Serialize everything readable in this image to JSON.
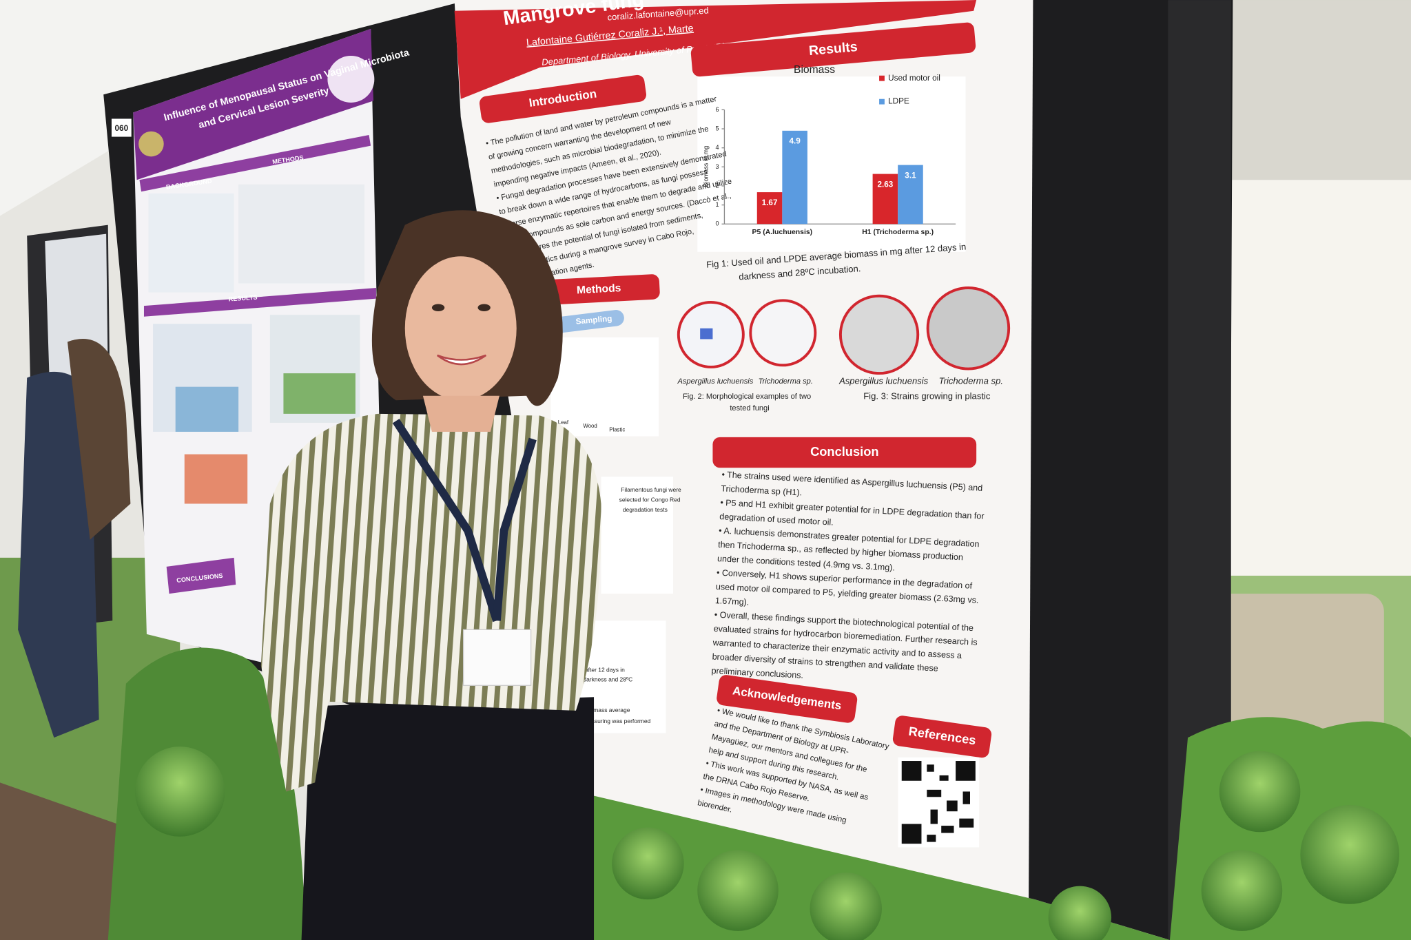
{
  "left_poster": {
    "number": "060",
    "title_lines": [
      "Influence of Menopausal Status on Vaginal Microbiota",
      "and Cervical Lesion Severity"
    ],
    "sections": [
      "BACKGROUND",
      "METHODS",
      "RESULTS",
      "CONCLUSIONS"
    ]
  },
  "poster": {
    "title": "Mangrove fung",
    "authors": "Lafontaine Gutiérrez Coraliz J.¹, Marte",
    "email": "coraliz.lafontaine@upr.ed",
    "affiliation": "Department of Biology, University of Puerto Rico , Mayagüez Camp",
    "introduction": {
      "heading": "Introduction",
      "lines": [
        "• The pollution of land and water by petroleum compounds is a matter",
        "of growing concern warranting the development of new",
        "methodologies, such as microbial biodegradation, to minimize the",
        "impending negative impacts (Ameen, et al., 2020).",
        "• Fungal degradation processes have been extensively demonstrated",
        "to break down a wide range of hydrocarbons, as fungi possess",
        "diverse enzymatic repertoires that enable them to degrade and utilize",
        "these compounds as sole carbon and energy sources. (Daccò et al.,",
        "udy explores the potential of fungi isolated from sediments,",
        "s, and plastics during a mangrove survey in Cabo Rojo,",
        "s bioremediation agents."
      ]
    },
    "methods": {
      "heading": "Methods",
      "labels": [
        "Sampling",
        "Leaf",
        "Wood",
        "Plastic"
      ],
      "notes": [
        "Filamentous fungi were",
        "selected for Congo Red",
        "degradation tests",
        "after 12 days in",
        "darkness and 28ºC",
        "Biomass average",
        "measuring was performed"
      ]
    },
    "results": {
      "heading": "Results",
      "chart": {
        "type": "bar",
        "title": "Biomass",
        "y_label": "Biomass in mg",
        "categories": [
          "P5 (A.luchuensis)",
          "H1 (Trichoderma sp.)"
        ],
        "series": [
          {
            "name": "Used motor oil",
            "color": "#d8262b",
            "values": [
              1.67,
              2.63
            ]
          },
          {
            "name": "LDPE",
            "color": "#5b9be0",
            "values": [
              4.9,
              3.1
            ]
          }
        ],
        "ylim": [
          0,
          6
        ],
        "yticks": [
          0,
          1,
          2,
          3,
          4,
          5,
          6
        ]
      },
      "fig1_caption": [
        "Fig 1: Used oil and LPDE average biomass in mg after 12 days in",
        "darkness and 28ºC incubation."
      ],
      "fig2_labels": [
        "Aspergillus luchuensis",
        "Trichoderma sp."
      ],
      "fig2_caption": [
        "Fig. 2: Morphological examples of two",
        "tested fungi"
      ],
      "fig3_labels": [
        "Aspergillus luchuensis",
        "Trichoderma sp."
      ],
      "fig3_caption": "Fig. 3: Strains growing in plastic"
    },
    "conclusion": {
      "heading": "Conclusion",
      "lines": [
        "• The strains used were identified as Aspergillus luchuensis (P5) and",
        "Trichoderma sp (H1).",
        "• P5 and H1 exhibit greater potential for in LDPE degradation than for",
        "degradation of used motor oil.",
        "• A. luchuensis demonstrates greater potential for LDPE degradation",
        "then Trichoderma sp., as reflected by higher biomass production",
        "under the conditions tested (4.9mg vs. 3.1mg).",
        "• Conversely, H1 shows superior performance in the degradation of",
        "used motor oil compared to P5, yielding greater biomass (2.63mg vs.",
        "1.67mg).",
        "• Overall, these findings support the biotechnological potential of the",
        "evaluated strains for hydrocarbon bioremediation. Further research is",
        "warranted to characterize their enzymatic activity and to assess a",
        "broader diversity of strains to strengthen and validate these",
        "preliminary conclusions."
      ]
    },
    "acknowledgements": {
      "heading": "Acknowledgements",
      "lines": [
        "• We would like to thank the Symbiosis Laboratory",
        "and the Department of Biology at UPR-",
        "Mayagüez, our mentors and collegues for the",
        "help and support during this research.",
        "• This work was supported by NASA, as well as",
        "the DRNA Cabo Rojo Reserve.",
        "• Images in methodology were made using",
        "biorender."
      ]
    },
    "references": {
      "heading": "References"
    }
  }
}
